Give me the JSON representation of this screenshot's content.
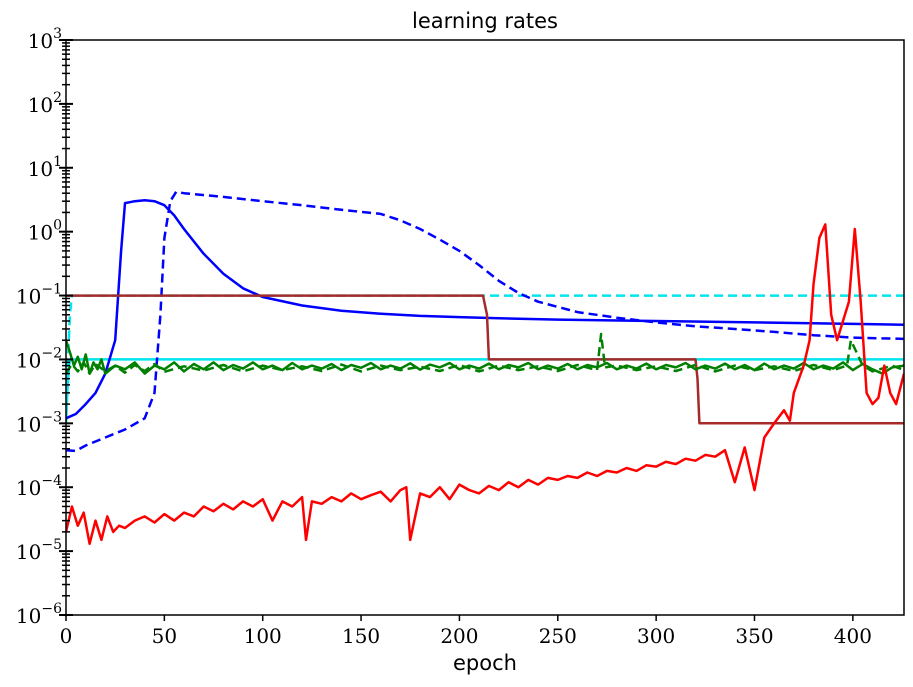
{
  "chart_data": {
    "type": "line",
    "title": "learning rates",
    "xlabel": "epoch",
    "ylabel": "",
    "xlim": [
      0,
      426
    ],
    "ylim": [
      1e-06,
      1000
    ],
    "yscale": "log",
    "grid": false,
    "x_ticks": [
      0,
      50,
      100,
      150,
      200,
      250,
      300,
      350,
      400
    ],
    "y_ticks": [
      {
        "value": 1e-06,
        "base": "10",
        "exp": "−6"
      },
      {
        "value": 1e-05,
        "base": "10",
        "exp": "−5"
      },
      {
        "value": 0.0001,
        "base": "10",
        "exp": "−4"
      },
      {
        "value": 0.001,
        "base": "10",
        "exp": "−3"
      },
      {
        "value": 0.01,
        "base": "10",
        "exp": "−2"
      },
      {
        "value": 0.1,
        "base": "10",
        "exp": "−1"
      },
      {
        "value": 1,
        "base": "10",
        "exp": "0"
      },
      {
        "value": 10,
        "base": "10",
        "exp": "1"
      },
      {
        "value": 100,
        "base": "10",
        "exp": "2"
      },
      {
        "value": 1000,
        "base": "10",
        "exp": "3"
      }
    ],
    "series": [
      {
        "color": "#00e5ee",
        "style": "dashed",
        "width": 2.5,
        "x": [
          0,
          1,
          2,
          3,
          426
        ],
        "y": [
          0.001,
          0.01,
          0.05,
          0.1,
          0.1
        ]
      },
      {
        "color": "#00e5ee",
        "style": "solid",
        "width": 2.5,
        "x": [
          0,
          1,
          2,
          426
        ],
        "y": [
          0.001,
          0.005,
          0.01,
          0.01
        ]
      },
      {
        "color": "#0000ff",
        "style": "solid",
        "width": 2.5,
        "x": [
          0,
          5,
          10,
          15,
          20,
          25,
          28,
          30,
          35,
          40,
          45,
          50,
          55,
          60,
          70,
          80,
          90,
          100,
          120,
          140,
          160,
          180,
          200,
          220,
          250,
          300,
          350,
          400,
          426
        ],
        "y": [
          0.0012,
          0.0014,
          0.002,
          0.003,
          0.006,
          0.02,
          0.5,
          2.8,
          3.0,
          3.1,
          3.0,
          2.6,
          1.8,
          1.1,
          0.45,
          0.22,
          0.13,
          0.095,
          0.07,
          0.058,
          0.052,
          0.048,
          0.046,
          0.044,
          0.042,
          0.04,
          0.038,
          0.036,
          0.035
        ]
      },
      {
        "color": "#0000ff",
        "style": "dashed",
        "width": 2.5,
        "x": [
          0,
          5,
          10,
          20,
          30,
          40,
          45,
          48,
          50,
          53,
          56,
          60,
          80,
          100,
          120,
          140,
          160,
          170,
          180,
          190,
          200,
          210,
          220,
          230,
          240,
          260,
          280,
          300,
          320,
          340,
          360,
          380,
          400,
          426
        ],
        "y": [
          0.00038,
          0.00037,
          0.00045,
          0.0006,
          0.0008,
          0.0012,
          0.003,
          0.05,
          0.8,
          3.0,
          4.2,
          4.0,
          3.5,
          3.0,
          2.6,
          2.2,
          1.9,
          1.5,
          1.1,
          0.75,
          0.5,
          0.3,
          0.17,
          0.11,
          0.08,
          0.055,
          0.045,
          0.038,
          0.033,
          0.03,
          0.027,
          0.024,
          0.022,
          0.021
        ]
      },
      {
        "color": "#a52a2a",
        "style": "solid",
        "width": 2.5,
        "x": [
          0,
          212,
          214,
          215,
          320,
          321,
          322,
          426
        ],
        "y": [
          0.1,
          0.1,
          0.05,
          0.01,
          0.01,
          0.005,
          0.001,
          0.001
        ]
      },
      {
        "color": "#008000",
        "style": "solid",
        "width": 2.5,
        "x": [
          0,
          2,
          4,
          6,
          8,
          10,
          12,
          14,
          16,
          18,
          20,
          25,
          30,
          35,
          40,
          45,
          50,
          55,
          60,
          65,
          70,
          75,
          80,
          85,
          90,
          95,
          100,
          105,
          110,
          115,
          120,
          125,
          130,
          135,
          140,
          145,
          150,
          155,
          160,
          165,
          170,
          175,
          180,
          185,
          190,
          195,
          200,
          205,
          210,
          215,
          220,
          225,
          230,
          235,
          240,
          245,
          250,
          255,
          260,
          265,
          270,
          275,
          280,
          285,
          290,
          295,
          300,
          305,
          310,
          315,
          320,
          325,
          330,
          335,
          340,
          345,
          350,
          355,
          360,
          365,
          370,
          375,
          380,
          385,
          390,
          395,
          400,
          405,
          410,
          415,
          420,
          426
        ],
        "y": [
          0.02,
          0.013,
          0.008,
          0.011,
          0.007,
          0.012,
          0.006,
          0.009,
          0.007,
          0.01,
          0.006,
          0.008,
          0.007,
          0.009,
          0.006,
          0.008,
          0.007,
          0.009,
          0.0065,
          0.0085,
          0.007,
          0.009,
          0.0068,
          0.0082,
          0.0072,
          0.009,
          0.007,
          0.008,
          0.0068,
          0.0088,
          0.007,
          0.008,
          0.0072,
          0.0085,
          0.0068,
          0.0082,
          0.0074,
          0.0088,
          0.007,
          0.008,
          0.0072,
          0.0087,
          0.0069,
          0.0083,
          0.0075,
          0.0088,
          0.007,
          0.008,
          0.0072,
          0.0086,
          0.007,
          0.0082,
          0.0075,
          0.0088,
          0.007,
          0.008,
          0.0072,
          0.0085,
          0.007,
          0.0082,
          0.0075,
          0.0088,
          0.007,
          0.008,
          0.0072,
          0.0086,
          0.007,
          0.0082,
          0.0075,
          0.0088,
          0.007,
          0.008,
          0.0072,
          0.0086,
          0.007,
          0.0082,
          0.0068,
          0.0086,
          0.007,
          0.008,
          0.0072,
          0.0088,
          0.007,
          0.008,
          0.0072,
          0.009,
          0.0068,
          0.0085,
          0.007,
          0.006,
          0.0075,
          0.008
        ]
      },
      {
        "color": "#008000",
        "style": "dashed",
        "width": 2.5,
        "x": [
          0,
          3,
          6,
          9,
          12,
          15,
          20,
          25,
          30,
          35,
          40,
          45,
          50,
          60,
          70,
          80,
          90,
          100,
          110,
          120,
          130,
          140,
          150,
          160,
          170,
          180,
          190,
          200,
          210,
          220,
          230,
          240,
          250,
          260,
          270,
          272,
          274,
          280,
          290,
          300,
          310,
          320,
          330,
          340,
          350,
          360,
          370,
          380,
          390,
          397,
          399,
          405,
          410,
          420,
          426
        ],
        "y": [
          0.006,
          0.0085,
          0.0065,
          0.009,
          0.006,
          0.0085,
          0.0065,
          0.008,
          0.0062,
          0.0082,
          0.0066,
          0.0085,
          0.0064,
          0.0078,
          0.0067,
          0.0082,
          0.0065,
          0.008,
          0.0068,
          0.0078,
          0.0066,
          0.0083,
          0.0065,
          0.008,
          0.0068,
          0.0077,
          0.0066,
          0.0082,
          0.0065,
          0.008,
          0.0068,
          0.0078,
          0.0066,
          0.0082,
          0.0068,
          0.025,
          0.0075,
          0.008,
          0.0068,
          0.0078,
          0.0066,
          0.0082,
          0.0065,
          0.008,
          0.0068,
          0.0078,
          0.0066,
          0.0082,
          0.0068,
          0.008,
          0.02,
          0.008,
          0.0065,
          0.008,
          0.0068
        ]
      },
      {
        "color": "#ff0000",
        "style": "solid",
        "width": 2.5,
        "x": [
          0,
          3,
          6,
          9,
          12,
          15,
          18,
          21,
          24,
          27,
          30,
          35,
          40,
          45,
          50,
          55,
          60,
          65,
          70,
          75,
          80,
          85,
          90,
          95,
          100,
          105,
          110,
          115,
          120,
          122,
          125,
          130,
          135,
          140,
          145,
          150,
          155,
          160,
          165,
          170,
          173,
          175,
          180,
          185,
          190,
          195,
          200,
          205,
          210,
          215,
          220,
          225,
          230,
          235,
          240,
          245,
          250,
          255,
          260,
          265,
          270,
          275,
          280,
          285,
          290,
          295,
          300,
          305,
          310,
          315,
          320,
          325,
          330,
          335,
          340,
          345,
          350,
          355,
          360,
          365,
          368,
          370,
          375,
          378,
          380,
          383,
          386,
          389,
          392,
          395,
          398,
          401,
          404,
          407,
          410,
          413,
          416,
          419,
          422,
          426
        ],
        "y": [
          2e-05,
          5e-05,
          2.5e-05,
          4e-05,
          1.3e-05,
          3e-05,
          1.5e-05,
          3.5e-05,
          2e-05,
          2.5e-05,
          2.3e-05,
          3e-05,
          3.5e-05,
          2.8e-05,
          3.8e-05,
          3e-05,
          4e-05,
          3.5e-05,
          5e-05,
          4.2e-05,
          5.5e-05,
          4.5e-05,
          6e-05,
          5e-05,
          6.5e-05,
          3e-05,
          6e-05,
          5e-05,
          7e-05,
          1.5e-05,
          6e-05,
          5.5e-05,
          7e-05,
          6e-05,
          8e-05,
          6.5e-05,
          7.5e-05,
          8.5e-05,
          6e-05,
          9e-05,
          0.0001,
          1.5e-05,
          8e-05,
          7e-05,
          0.0001,
          6.5e-05,
          0.00011,
          9e-05,
          8e-05,
          0.000105,
          9e-05,
          0.00012,
          0.0001,
          0.00013,
          0.00011,
          0.00014,
          0.00013,
          0.00015,
          0.00014,
          0.00017,
          0.00015,
          0.00018,
          0.00017,
          0.0002,
          0.00018,
          0.00022,
          0.00021,
          0.00025,
          0.00023,
          0.00028,
          0.00026,
          0.00032,
          0.0003,
          0.00038,
          0.00012,
          0.00042,
          9e-05,
          0.0006,
          0.001,
          0.0016,
          0.0011,
          0.003,
          0.008,
          0.02,
          0.15,
          0.8,
          1.3,
          0.05,
          0.02,
          0.04,
          0.08,
          1.1,
          0.08,
          0.003,
          0.002,
          0.0025,
          0.008,
          0.003,
          0.002,
          0.006
        ]
      }
    ]
  }
}
